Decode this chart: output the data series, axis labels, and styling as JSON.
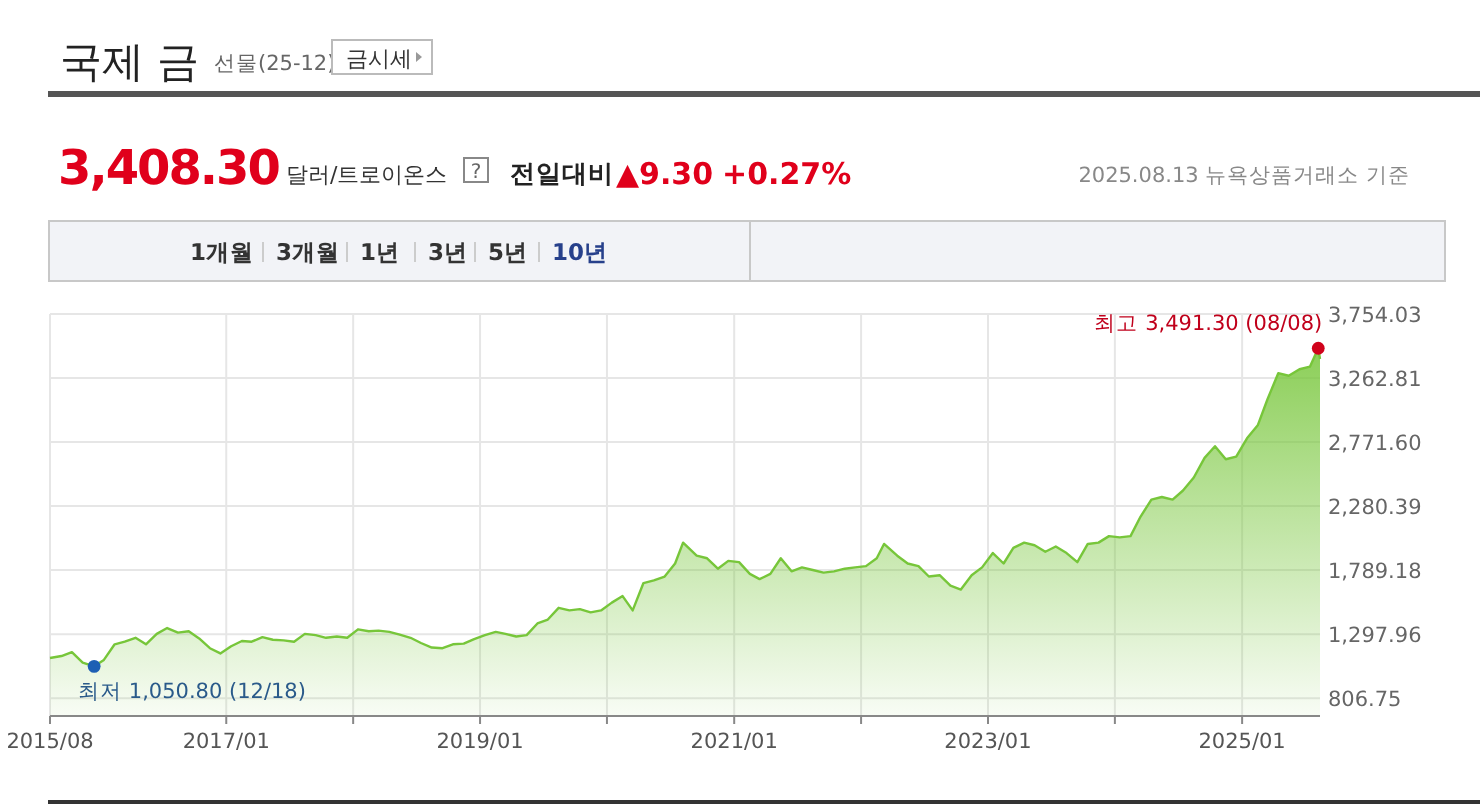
{
  "chart_data": {
    "type": "area",
    "title": "국제 금",
    "subtitle": "선물(25-12)",
    "annotations": [
      "금시세",
      "3,408.30",
      "달러/트로이온스",
      "?",
      "전일대비",
      "▲9.30",
      "+0.27%",
      "2025.08.13 뉴욕상품거래소 기준",
      "1개월",
      "3개월",
      "1년",
      "3년",
      "5년",
      "10년",
      {
        "text": "최저 1,050.80 (12/18)",
        "x": "2015-12-18",
        "y": 1050.8
      },
      {
        "text": "최고 3,491.30 (08/08)",
        "x": "2025-08-08",
        "y": 3491.3
      }
    ],
    "x": [
      "2015-08-13",
      "2015-09-15",
      "2015-10-15",
      "2015-11-15",
      "2015-12-18",
      "2016-01-15",
      "2016-02-15",
      "2016-03-15",
      "2016-04-15",
      "2016-05-15",
      "2016-06-15",
      "2016-07-15",
      "2016-08-15",
      "2016-09-15",
      "2016-10-15",
      "2016-11-15",
      "2016-12-15",
      "2017-01-15",
      "2017-02-15",
      "2017-03-15",
      "2017-04-15",
      "2017-05-15",
      "2017-06-15",
      "2017-07-15",
      "2017-08-15",
      "2017-09-15",
      "2017-10-15",
      "2017-11-15",
      "2017-12-15",
      "2018-01-15",
      "2018-02-15",
      "2018-03-15",
      "2018-04-15",
      "2018-05-15",
      "2018-06-15",
      "2018-07-15",
      "2018-08-15",
      "2018-09-15",
      "2018-10-15",
      "2018-11-15",
      "2018-12-15",
      "2019-01-15",
      "2019-02-15",
      "2019-03-15",
      "2019-04-15",
      "2019-05-15",
      "2019-06-15",
      "2019-07-15",
      "2019-08-15",
      "2019-09-15",
      "2019-10-15",
      "2019-11-15",
      "2019-12-15",
      "2020-01-15",
      "2020-02-15",
      "2020-03-15",
      "2020-04-15",
      "2020-05-15",
      "2020-06-15",
      "2020-07-15",
      "2020-08-07",
      "2020-09-15",
      "2020-10-15",
      "2020-11-15",
      "2020-12-15",
      "2021-01-15",
      "2021-02-15",
      "2021-03-15",
      "2021-04-15",
      "2021-05-15",
      "2021-06-15",
      "2021-07-15",
      "2021-08-15",
      "2021-09-15",
      "2021-10-15",
      "2021-11-15",
      "2021-12-15",
      "2022-01-15",
      "2022-02-15",
      "2022-03-08",
      "2022-04-15",
      "2022-05-15",
      "2022-06-15",
      "2022-07-15",
      "2022-08-15",
      "2022-09-15",
      "2022-10-15",
      "2022-11-15",
      "2022-12-15",
      "2023-01-15",
      "2023-02-15",
      "2023-03-15",
      "2023-04-15",
      "2023-05-15",
      "2023-06-15",
      "2023-07-15",
      "2023-08-15",
      "2023-09-15",
      "2023-10-15",
      "2023-11-15",
      "2023-12-15",
      "2024-01-15",
      "2024-02-15",
      "2024-03-15",
      "2024-04-15",
      "2024-05-15",
      "2024-06-15",
      "2024-07-15",
      "2024-08-15",
      "2024-09-15",
      "2024-10-15",
      "2024-11-15",
      "2024-12-15",
      "2025-01-15",
      "2025-02-15",
      "2025-03-15",
      "2025-04-15",
      "2025-05-15",
      "2025-06-15",
      "2025-07-15",
      "2025-08-08",
      "2025-08-13"
    ],
    "values": [
      1115,
      1130,
      1160,
      1080,
      1050.8,
      1100,
      1220,
      1240,
      1270,
      1220,
      1300,
      1345,
      1310,
      1320,
      1265,
      1190,
      1150,
      1205,
      1245,
      1240,
      1275,
      1255,
      1250,
      1240,
      1300,
      1290,
      1270,
      1280,
      1270,
      1335,
      1320,
      1325,
      1315,
      1295,
      1270,
      1230,
      1195,
      1190,
      1220,
      1225,
      1260,
      1290,
      1315,
      1300,
      1280,
      1290,
      1380,
      1410,
      1500,
      1480,
      1490,
      1465,
      1480,
      1540,
      1590,
      1480,
      1690,
      1710,
      1740,
      1840,
      2000,
      1900,
      1880,
      1800,
      1860,
      1850,
      1760,
      1720,
      1760,
      1880,
      1780,
      1810,
      1790,
      1770,
      1780,
      1800,
      1810,
      1820,
      1880,
      1990,
      1900,
      1840,
      1820,
      1740,
      1750,
      1670,
      1640,
      1750,
      1810,
      1920,
      1840,
      1960,
      2000,
      1980,
      1930,
      1970,
      1920,
      1850,
      1990,
      2000,
      2050,
      2040,
      2050,
      2200,
      2330,
      2350,
      2330,
      2400,
      2500,
      2650,
      2740,
      2640,
      2660,
      2800,
      2900,
      3100,
      3300,
      3280,
      3330,
      3350,
      3491.3,
      3408.3
    ],
    "color": "#77c63a",
    "grid": true,
    "xlim": [
      "2015-08-13",
      "2025-08-13"
    ],
    "xticks": [
      {
        "value": "2015-08-13",
        "label": "2015/08"
      },
      {
        "value": "2017-01",
        "label": "2017/01"
      },
      {
        "value": "2018-01",
        "label": null
      },
      {
        "value": "2019-01",
        "label": "2019/01"
      },
      {
        "value": "2020-01",
        "label": null
      },
      {
        "value": "2021-01",
        "label": "2021/01"
      },
      {
        "value": "2022-01",
        "label": null
      },
      {
        "value": "2023-01",
        "label": "2023/01"
      },
      {
        "value": "2024-01",
        "label": null
      },
      {
        "value": "2025-01",
        "label": "2025/01"
      }
    ],
    "ylim": [
      670,
      3754.03
    ],
    "yticks": [
      806.75,
      {
        "value": 1297.96,
        "label": "1,297.96"
      },
      {
        "value": 1789.18,
        "label": "1,789.18"
      },
      {
        "value": 2280.39,
        "label": "2,280.39"
      },
      {
        "value": 2771.6,
        "label": "2,771.60"
      },
      {
        "value": 3262.81,
        "label": "3,262.81"
      },
      {
        "value": 3754.03,
        "label": "3,754.03"
      }
    ]
  }
}
